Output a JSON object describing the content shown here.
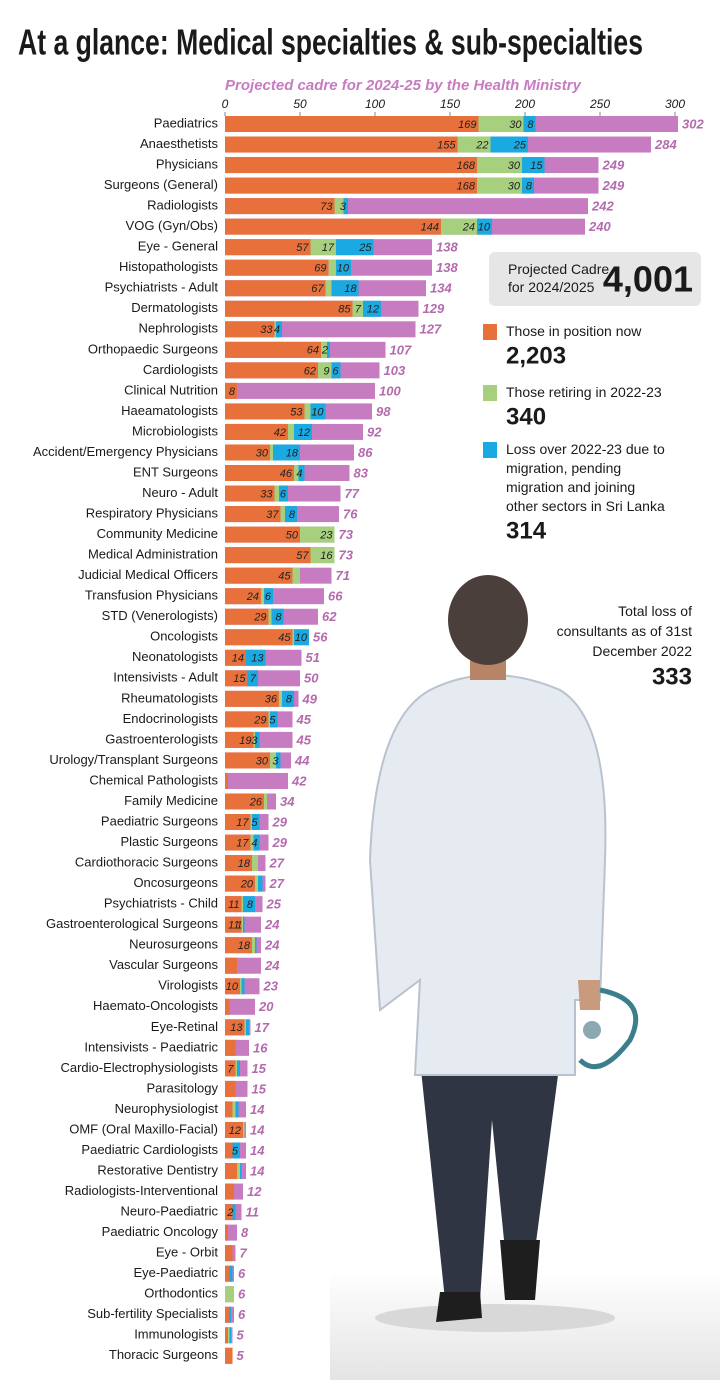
{
  "chart_data": {
    "type": "stacked-bar-horizontal",
    "title": "At a glance: Medical specialties & sub-specialties",
    "subtitle": "Projected cadre for 2024-25 by the Health Ministry",
    "xlim": [
      0,
      300
    ],
    "xticks": [
      0,
      50,
      100,
      150,
      200,
      250,
      300
    ],
    "categories": [
      "Paediatrics",
      "Anaesthetists",
      "Physicians",
      "Surgeons (General)",
      "Radiologists",
      "VOG (Gyn/Obs)",
      "Eye - General",
      "Histopathologists",
      "Psychiatrists - Adult",
      "Dermatologists",
      "Nephrologists",
      "Orthopaedic Surgeons",
      "Cardiologists",
      "Clinical Nutrition",
      "Haeamatologists",
      "Microbiologists",
      "Accident/Emergency Physicians",
      "ENT Surgeons",
      "Neuro - Adult",
      "Respiratory Physicians",
      "Community Medicine",
      "Medical Administration",
      "Judicial Medical Officers",
      "Transfusion Physicians",
      "STD (Venerologists)",
      "Oncologists",
      "Neonatologists",
      "Intensivists - Adult",
      "Rheumatologists",
      "Endocrinologists",
      "Gastroenterologists",
      "Urology/Transplant Surgeons",
      "Chemical Pathologists",
      "Family Medicine",
      "Paediatric Surgeons",
      "Plastic Surgeons",
      "Cardiothoracic Surgeons",
      "Oncosurgeons",
      "Psychiatrists - Child",
      "Gastroenterological Surgeons",
      "Neurosurgeons",
      "Vascular Surgeons",
      "Virologists",
      "Haemato-Oncologists",
      "Eye-Retinal",
      "Intensivists - Paediatric",
      "Cardio-Electrophysiologists",
      "Parasitology",
      "Neurophysiologist",
      "OMF (Oral Maxillo-Facial)",
      "Paediatric Cardiologists",
      "Restorative Dentistry",
      "Radiologists-Interventional",
      "Neuro-Paediatric",
      "Paediatric Oncology",
      "Eye - Orbit",
      "Eye-Paediatric",
      "Orthodontics",
      "Sub-fertility Specialists",
      "Immunologists",
      "Thoracic Surgeons"
    ],
    "cadre": {
      "name": "Projected Cadre for 2024/2025",
      "color": "#c77bc0",
      "total": {
        "value": 4001,
        "label": "4,001"
      },
      "values": [
        302,
        284,
        249,
        249,
        242,
        240,
        138,
        138,
        134,
        129,
        127,
        107,
        103,
        100,
        98,
        92,
        86,
        83,
        77,
        76,
        73,
        73,
        71,
        66,
        62,
        56,
        51,
        50,
        49,
        45,
        45,
        44,
        42,
        34,
        29,
        29,
        27,
        27,
        25,
        24,
        24,
        24,
        23,
        20,
        17,
        16,
        15,
        15,
        14,
        14,
        14,
        14,
        12,
        11,
        8,
        7,
        6,
        6,
        6,
        5,
        5
      ]
    },
    "series": [
      {
        "name": "Those in position now",
        "color": "#e8703a",
        "total": {
          "value": 2203,
          "label": "2,203"
        },
        "values": [
          169,
          155,
          168,
          168,
          73,
          144,
          57,
          69,
          67,
          85,
          33,
          64,
          62,
          8,
          53,
          42,
          30,
          46,
          33,
          37,
          50,
          57,
          45,
          24,
          29,
          45,
          14,
          15,
          36,
          29,
          19,
          30,
          2,
          26,
          17,
          17,
          18,
          20,
          11,
          11,
          18,
          8,
          10,
          3,
          13,
          7,
          7,
          7,
          5,
          12,
          5,
          8,
          6,
          5,
          2,
          5,
          3,
          0,
          3,
          2,
          5
        ],
        "value_labels": [
          "169",
          "155",
          "168",
          "168",
          "73",
          "144",
          "57",
          "69",
          "67",
          "85",
          "33",
          "64",
          "62",
          "8",
          "53",
          "42",
          "30",
          "46",
          "33",
          "37",
          "50",
          "57",
          "45",
          "24",
          "29",
          "45",
          "14",
          "15",
          "36",
          "29",
          "19",
          "30",
          null,
          "26",
          "17",
          "17",
          "18",
          "20",
          "11",
          "11",
          "18",
          null,
          "10",
          null,
          "13",
          null,
          "7",
          null,
          null,
          "12",
          null,
          null,
          null,
          null,
          null,
          null,
          null,
          null,
          null,
          null,
          null
        ]
      },
      {
        "name": "Those retiring in 2022-23",
        "color": "#a6cf7e",
        "total": {
          "value": 340,
          "label": "340"
        },
        "values": [
          30,
          22,
          30,
          30,
          6,
          24,
          17,
          5,
          4,
          7,
          1,
          4,
          9,
          0,
          4,
          4,
          2,
          3,
          3,
          3,
          23,
          16,
          5,
          2,
          2,
          1,
          0,
          0,
          2,
          1,
          1,
          4,
          0,
          2,
          1,
          2,
          4,
          2,
          1,
          1,
          2,
          0,
          1,
          0,
          1,
          0,
          1,
          0,
          2,
          1,
          0,
          2,
          0,
          0,
          0,
          0,
          0,
          6,
          0,
          1,
          0
        ],
        "value_labels": [
          "30",
          "22",
          "30",
          "30",
          null,
          "24",
          "17",
          null,
          null,
          "7",
          null,
          null,
          "9",
          null,
          null,
          null,
          null,
          null,
          null,
          null,
          "23",
          "16",
          null,
          null,
          null,
          null,
          null,
          null,
          null,
          null,
          null,
          null,
          null,
          null,
          null,
          null,
          null,
          null,
          null,
          null,
          null,
          null,
          null,
          null,
          null,
          null,
          null,
          null,
          null,
          null,
          null,
          null,
          null,
          null,
          null,
          null,
          null,
          null,
          null,
          null,
          null
        ]
      },
      {
        "name": "Loss over 2022-23 due to migration, pending migration and joining other sectors in Sri Lanka",
        "color": "#1ba9e1",
        "total": {
          "value": 314,
          "label": "314"
        },
        "values": [
          8,
          25,
          15,
          8,
          3,
          10,
          25,
          10,
          18,
          12,
          4,
          2,
          6,
          0,
          10,
          12,
          18,
          4,
          6,
          8,
          0,
          0,
          0,
          6,
          8,
          10,
          13,
          7,
          8,
          5,
          3,
          3,
          0,
          0,
          5,
          4,
          0,
          3,
          8,
          1,
          1,
          0,
          2,
          0,
          2,
          0,
          2,
          0,
          2,
          0,
          5,
          1,
          0,
          2,
          0,
          0,
          2,
          0,
          1,
          1,
          0
        ],
        "value_labels": [
          "8",
          "25",
          "15",
          "8",
          "3",
          "10",
          "25",
          "10",
          "18",
          "12",
          "4",
          "2",
          "6",
          null,
          "10",
          "12",
          "18",
          "4",
          "6",
          "8",
          null,
          null,
          null,
          "6",
          "8",
          "10",
          "13",
          "7",
          "8",
          "5",
          "3",
          "3",
          null,
          null,
          "5",
          "4",
          null,
          null,
          "8",
          "1",
          null,
          null,
          null,
          null,
          null,
          null,
          null,
          null,
          null,
          null,
          "5",
          null,
          null,
          "2",
          null,
          null,
          null,
          null,
          null,
          null,
          null
        ]
      }
    ],
    "annotation": {
      "text": "Total loss of consultants as of 31st December 2022",
      "value": 333
    }
  }
}
